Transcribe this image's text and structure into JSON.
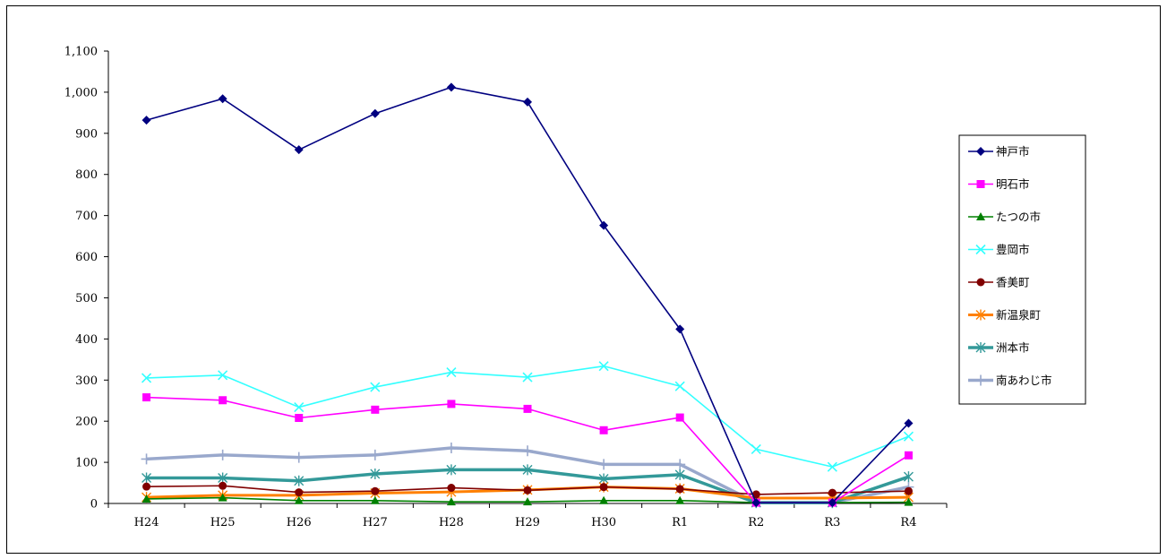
{
  "chart_data": {
    "type": "line",
    "categories": [
      "H24",
      "H25",
      "H26",
      "H27",
      "H28",
      "H29",
      "H30",
      "R1",
      "R2",
      "R3",
      "R4"
    ],
    "ylim": [
      0,
      1100
    ],
    "yticks": [
      0,
      100,
      200,
      300,
      400,
      500,
      600,
      700,
      800,
      900,
      1000,
      1100
    ],
    "ytick_labels": [
      "0",
      "100",
      "200",
      "300",
      "400",
      "500",
      "600",
      "700",
      "800",
      "900",
      "1,000",
      "1,100"
    ],
    "grid": false,
    "legend_position": "right",
    "series": [
      {
        "name": "神戸市",
        "color": "#000080",
        "marker": "diamond",
        "values": [
          932,
          984,
          860,
          948,
          1012,
          976,
          676,
          424,
          2,
          2,
          195
        ]
      },
      {
        "name": "明石市",
        "color": "#FF00FF",
        "marker": "square",
        "values": [
          258,
          251,
          208,
          228,
          242,
          230,
          178,
          209,
          2,
          2,
          117
        ]
      },
      {
        "name": "たつの市",
        "color": "#008000",
        "marker": "triangle",
        "values": [
          11,
          14,
          7,
          7,
          4,
          4,
          7,
          7,
          2,
          2,
          3
        ]
      },
      {
        "name": "豊岡市",
        "color": "#33FFFF",
        "marker": "x",
        "values": [
          305,
          312,
          234,
          283,
          319,
          307,
          334,
          285,
          132,
          89,
          163
        ]
      },
      {
        "name": "香美町",
        "color": "#800000",
        "marker": "circle",
        "values": [
          41,
          43,
          27,
          30,
          38,
          32,
          40,
          35,
          22,
          26,
          30
        ]
      },
      {
        "name": "新温泉町",
        "color": "#FF8000",
        "marker": "star",
        "values": [
          15,
          20,
          20,
          25,
          28,
          33,
          40,
          36,
          13,
          13,
          15
        ]
      },
      {
        "name": "洲本市",
        "color": "#339999",
        "marker": "star",
        "values": [
          62,
          62,
          55,
          72,
          82,
          82,
          60,
          70,
          2,
          2,
          65
        ]
      },
      {
        "name": "南あわじ市",
        "color": "#99A8CC",
        "marker": "plus",
        "values": [
          108,
          118,
          112,
          118,
          135,
          128,
          95,
          95,
          2,
          2,
          40
        ]
      }
    ]
  }
}
